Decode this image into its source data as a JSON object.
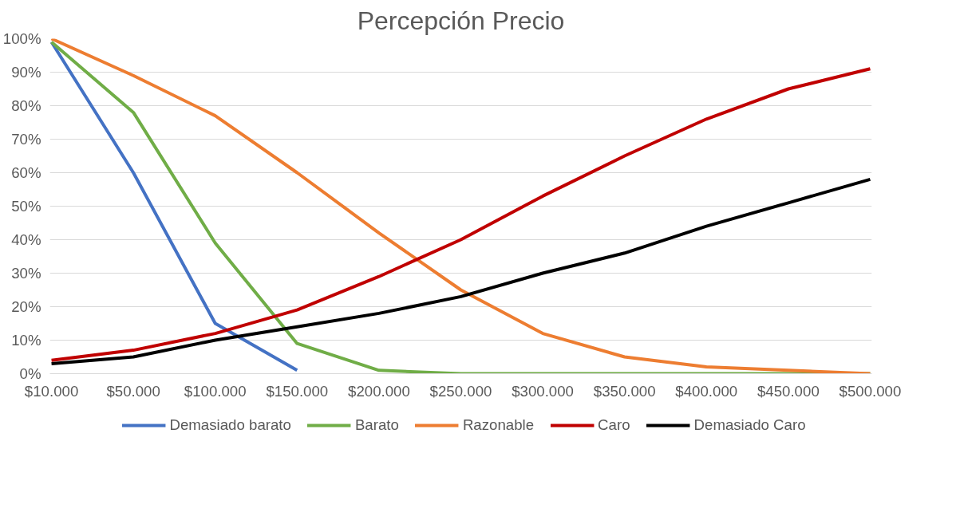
{
  "chart_data": {
    "type": "line",
    "title": "Percepción Precio",
    "categories": [
      "$10.000",
      "$50.000",
      "$100.000",
      "$150.000",
      "$200.000",
      "$250.000",
      "$300.000",
      "$350.000",
      "$400.000",
      "$450.000",
      "$500.000"
    ],
    "series": [
      {
        "name": "Demasiado barato",
        "color": "#4472c4",
        "values": [
          99,
          60,
          15,
          1,
          null,
          null,
          null,
          null,
          null,
          null,
          null
        ]
      },
      {
        "name": "Barato",
        "color": "#70ad47",
        "values": [
          99,
          78,
          39,
          9,
          1,
          0,
          0,
          0,
          0,
          0,
          0
        ]
      },
      {
        "name": "Razonable",
        "color": "#ed7d31",
        "values": [
          100,
          89,
          77,
          60,
          42,
          25,
          12,
          5,
          2,
          1,
          0
        ]
      },
      {
        "name": "Caro",
        "color": "#c00000",
        "values": [
          4,
          7,
          12,
          19,
          29,
          40,
          53,
          65,
          76,
          85,
          91
        ]
      },
      {
        "name": "Demasiado Caro",
        "color": "#000000",
        "values": [
          3,
          5,
          10,
          14,
          18,
          23,
          30,
          36,
          44,
          51,
          58
        ]
      }
    ],
    "ylim": [
      0,
      100
    ],
    "yticks": [
      {
        "value": 0,
        "label": "0%"
      },
      {
        "value": 10,
        "label": "10%"
      },
      {
        "value": 20,
        "label": "20%"
      },
      {
        "value": 30,
        "label": "30%"
      },
      {
        "value": 40,
        "label": "40%"
      },
      {
        "value": 50,
        "label": "50%"
      },
      {
        "value": 60,
        "label": "60%"
      },
      {
        "value": 70,
        "label": "70%"
      },
      {
        "value": 80,
        "label": "80%"
      },
      {
        "value": 90,
        "label": "90%"
      },
      {
        "value": 100,
        "label": "100%"
      }
    ],
    "grid": "y",
    "legend": "bottom",
    "marker": "none",
    "line_style": "solid"
  }
}
